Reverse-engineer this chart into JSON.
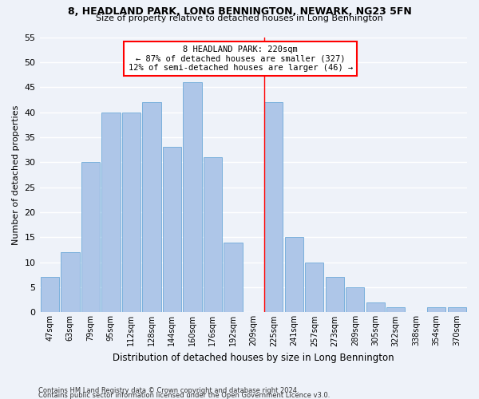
{
  "title": "8, HEADLAND PARK, LONG BENNINGTON, NEWARK, NG23 5FN",
  "subtitle": "Size of property relative to detached houses in Long Bennington",
  "xlabel": "Distribution of detached houses by size in Long Bennington",
  "ylabel": "Number of detached properties",
  "categories": [
    "47sqm",
    "63sqm",
    "79sqm",
    "95sqm",
    "112sqm",
    "128sqm",
    "144sqm",
    "160sqm",
    "176sqm",
    "192sqm",
    "209sqm",
    "225sqm",
    "241sqm",
    "257sqm",
    "273sqm",
    "289sqm",
    "305sqm",
    "322sqm",
    "338sqm",
    "354sqm",
    "370sqm"
  ],
  "values": [
    7,
    12,
    30,
    40,
    40,
    42,
    33,
    46,
    31,
    14,
    0,
    42,
    15,
    10,
    7,
    5,
    2,
    1,
    0,
    1,
    1
  ],
  "bar_color": "#aec6e8",
  "bar_edgecolor": "#5a9fd4",
  "highlight_index": 11,
  "ylim": [
    0,
    55
  ],
  "yticks": [
    0,
    5,
    10,
    15,
    20,
    25,
    30,
    35,
    40,
    45,
    50,
    55
  ],
  "annotation_title": "8 HEADLAND PARK: 220sqm",
  "annotation_line1": "← 87% of detached houses are smaller (327)",
  "annotation_line2": "12% of semi-detached houses are larger (46) →",
  "background_color": "#eef2f9",
  "grid_color": "#ffffff",
  "footnote1": "Contains HM Land Registry data © Crown copyright and database right 2024.",
  "footnote2": "Contains public sector information licensed under the Open Government Licence v3.0."
}
